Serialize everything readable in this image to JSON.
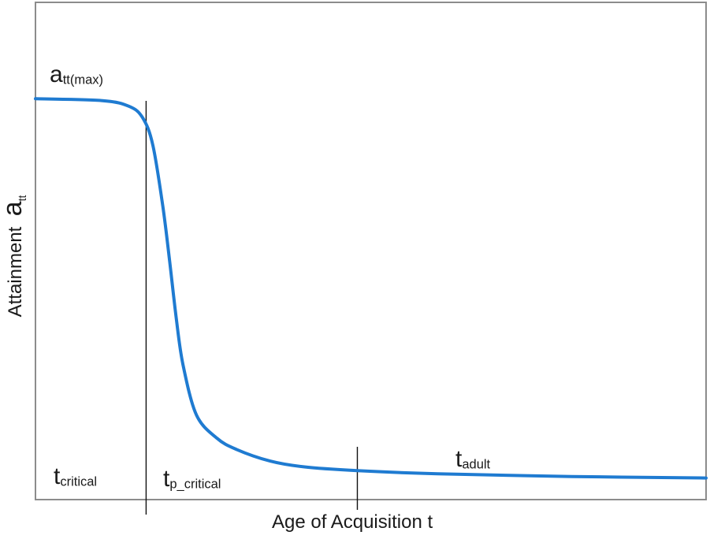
{
  "chart_data": {
    "type": "line",
    "title": "",
    "xlabel": "Age of Acquisition t",
    "ylabel": {
      "text": "Attainment",
      "symbol": "a",
      "symbol_sub": "tt"
    },
    "series": [
      {
        "color": "#1f7bd1",
        "x": [
          0,
          0.1,
          0.14,
          0.16,
          0.175,
          0.19,
          0.2,
          0.21,
          0.22,
          0.24,
          0.27,
          0.3,
          0.35,
          0.4,
          0.48,
          0.6,
          0.8,
          1.0
        ],
        "y": [
          1.0,
          0.995,
          0.98,
          0.95,
          0.88,
          0.72,
          0.58,
          0.43,
          0.31,
          0.18,
          0.12,
          0.09,
          0.06,
          0.045,
          0.035,
          0.027,
          0.02,
          0.016
        ]
      }
    ],
    "xlim": [
      0,
      1
    ],
    "ylim": [
      -0.04,
      1.25
    ],
    "grid": false,
    "markers": [
      {
        "x": 0.165,
        "label": {
          "main": "t",
          "sub": "critical"
        }
      },
      {
        "x": 0.48,
        "label": {
          "main": "t",
          "sub": "p_critical"
        }
      }
    ],
    "annotations": [
      {
        "main": "a",
        "sub": "tt(max)"
      },
      {
        "main": "t",
        "sub": "adult"
      }
    ]
  }
}
